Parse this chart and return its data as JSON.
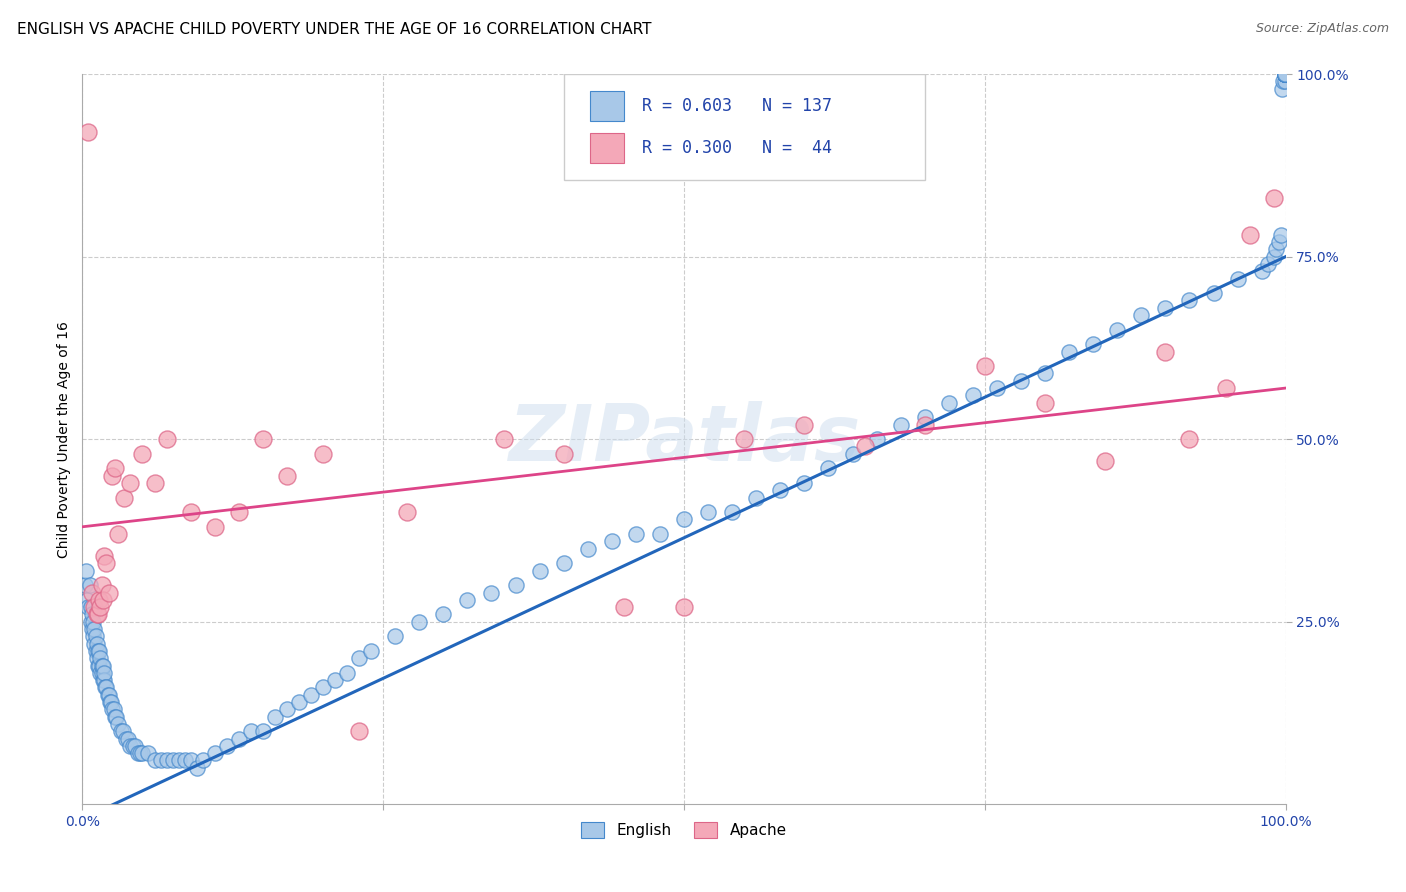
{
  "title": "ENGLISH VS APACHE CHILD POVERTY UNDER THE AGE OF 16 CORRELATION CHART",
  "source": "Source: ZipAtlas.com",
  "ylabel": "Child Poverty Under the Age of 16",
  "xlim": [
    0,
    1
  ],
  "ylim": [
    0,
    1
  ],
  "english_R": 0.603,
  "english_N": 137,
  "apache_R": 0.3,
  "apache_N": 44,
  "english_color": "#a8c8e8",
  "apache_color": "#f4a8b8",
  "english_edge_color": "#4488cc",
  "apache_edge_color": "#dd6688",
  "english_line_color": "#2266bb",
  "apache_line_color": "#dd4488",
  "watermark": "ZIPatlas",
  "legend_label_english": "English",
  "legend_label_apache": "Apache",
  "background_color": "#ffffff",
  "grid_color": "#cccccc",
  "title_fontsize": 11,
  "axis_label_fontsize": 10,
  "tick_fontsize": 10,
  "tick_color": "#2244aa",
  "legend_text_color": "#2244aa",
  "english_line_start_y": -0.02,
  "english_line_end_y": 0.75,
  "apache_line_start_y": 0.38,
  "apache_line_end_y": 0.57,
  "english_x": [
    0.002,
    0.003,
    0.004,
    0.005,
    0.006,
    0.007,
    0.007,
    0.008,
    0.008,
    0.009,
    0.009,
    0.01,
    0.01,
    0.011,
    0.011,
    0.012,
    0.012,
    0.013,
    0.013,
    0.014,
    0.014,
    0.015,
    0.015,
    0.016,
    0.016,
    0.017,
    0.017,
    0.018,
    0.018,
    0.019,
    0.02,
    0.021,
    0.022,
    0.023,
    0.024,
    0.025,
    0.026,
    0.027,
    0.028,
    0.03,
    0.032,
    0.034,
    0.036,
    0.038,
    0.04,
    0.042,
    0.044,
    0.046,
    0.048,
    0.05,
    0.055,
    0.06,
    0.065,
    0.07,
    0.075,
    0.08,
    0.085,
    0.09,
    0.095,
    0.1,
    0.11,
    0.12,
    0.13,
    0.14,
    0.15,
    0.16,
    0.17,
    0.18,
    0.19,
    0.2,
    0.21,
    0.22,
    0.23,
    0.24,
    0.26,
    0.28,
    0.3,
    0.32,
    0.34,
    0.36,
    0.38,
    0.4,
    0.42,
    0.44,
    0.46,
    0.48,
    0.5,
    0.52,
    0.54,
    0.56,
    0.58,
    0.6,
    0.62,
    0.64,
    0.66,
    0.68,
    0.7,
    0.72,
    0.74,
    0.76,
    0.78,
    0.8,
    0.82,
    0.84,
    0.86,
    0.88,
    0.9,
    0.92,
    0.94,
    0.96,
    0.98,
    0.985,
    0.99,
    0.992,
    0.994,
    0.996,
    0.997,
    0.998,
    0.999,
    0.999,
    0.999,
    0.999,
    0.999,
    0.999,
    0.999,
    0.999,
    0.999,
    0.999,
    0.999,
    0.999,
    0.999,
    0.999,
    0.999,
    0.999,
    0.999,
    0.999,
    0.999
  ],
  "english_y": [
    0.3,
    0.32,
    0.28,
    0.27,
    0.3,
    0.25,
    0.27,
    0.24,
    0.26,
    0.23,
    0.25,
    0.22,
    0.24,
    0.21,
    0.23,
    0.2,
    0.22,
    0.19,
    0.21,
    0.19,
    0.21,
    0.18,
    0.2,
    0.18,
    0.19,
    0.17,
    0.19,
    0.17,
    0.18,
    0.16,
    0.16,
    0.15,
    0.15,
    0.14,
    0.14,
    0.13,
    0.13,
    0.12,
    0.12,
    0.11,
    0.1,
    0.1,
    0.09,
    0.09,
    0.08,
    0.08,
    0.08,
    0.07,
    0.07,
    0.07,
    0.07,
    0.06,
    0.06,
    0.06,
    0.06,
    0.06,
    0.06,
    0.06,
    0.05,
    0.06,
    0.07,
    0.08,
    0.09,
    0.1,
    0.1,
    0.12,
    0.13,
    0.14,
    0.15,
    0.16,
    0.17,
    0.18,
    0.2,
    0.21,
    0.23,
    0.25,
    0.26,
    0.28,
    0.29,
    0.3,
    0.32,
    0.33,
    0.35,
    0.36,
    0.37,
    0.37,
    0.39,
    0.4,
    0.4,
    0.42,
    0.43,
    0.44,
    0.46,
    0.48,
    0.5,
    0.52,
    0.53,
    0.55,
    0.56,
    0.57,
    0.58,
    0.59,
    0.62,
    0.63,
    0.65,
    0.67,
    0.68,
    0.69,
    0.7,
    0.72,
    0.73,
    0.74,
    0.75,
    0.76,
    0.77,
    0.78,
    0.98,
    0.99,
    0.99,
    1.0,
    1.0,
    1.0,
    1.0,
    1.0,
    1.0,
    1.0,
    1.0,
    1.0,
    1.0,
    1.0,
    1.0,
    1.0,
    1.0,
    1.0,
    1.0,
    1.0,
    1.0
  ],
  "apache_x": [
    0.005,
    0.008,
    0.01,
    0.012,
    0.013,
    0.014,
    0.015,
    0.016,
    0.017,
    0.018,
    0.02,
    0.022,
    0.025,
    0.027,
    0.03,
    0.035,
    0.04,
    0.05,
    0.06,
    0.07,
    0.09,
    0.11,
    0.13,
    0.15,
    0.17,
    0.2,
    0.23,
    0.27,
    0.35,
    0.4,
    0.45,
    0.5,
    0.55,
    0.6,
    0.65,
    0.7,
    0.75,
    0.8,
    0.85,
    0.9,
    0.92,
    0.95,
    0.97,
    0.99
  ],
  "apache_y": [
    0.92,
    0.29,
    0.27,
    0.26,
    0.26,
    0.28,
    0.27,
    0.3,
    0.28,
    0.34,
    0.33,
    0.29,
    0.45,
    0.46,
    0.37,
    0.42,
    0.44,
    0.48,
    0.44,
    0.5,
    0.4,
    0.38,
    0.4,
    0.5,
    0.45,
    0.48,
    0.1,
    0.4,
    0.5,
    0.48,
    0.27,
    0.27,
    0.5,
    0.52,
    0.49,
    0.52,
    0.6,
    0.55,
    0.47,
    0.62,
    0.5,
    0.57,
    0.78,
    0.83
  ]
}
